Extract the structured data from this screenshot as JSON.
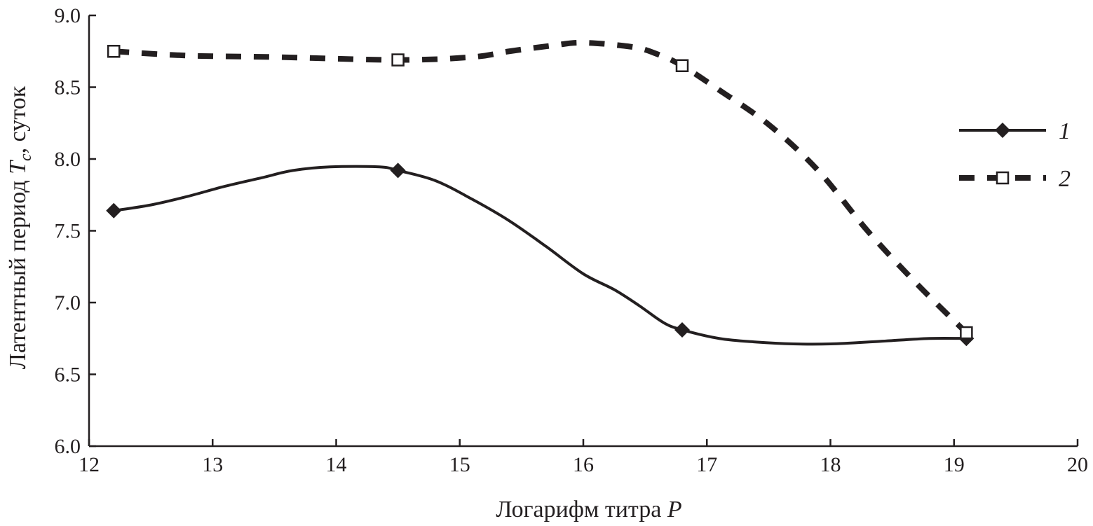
{
  "chart_data": {
    "type": "line",
    "title": "",
    "xlabel_prefix": "Логарифм титра ",
    "xlabel_var": "P",
    "ylabel_prefix": "Латентный период ",
    "ylabel_var": "T",
    "ylabel_sub": "c",
    "ylabel_suffix": ", суток",
    "xlim": [
      12,
      20
    ],
    "ylim": [
      6.0,
      9.0
    ],
    "xticks": [
      12,
      13,
      14,
      15,
      16,
      17,
      18,
      19,
      20
    ],
    "yticks": [
      6.0,
      6.5,
      7.0,
      7.5,
      8.0,
      8.5,
      9.0
    ],
    "legend_position": "right",
    "series": [
      {
        "name": "1",
        "style": "solid",
        "marker": "diamond",
        "color": "#231f20",
        "x": [
          12.2,
          14.5,
          16.8,
          19.1
        ],
        "y": [
          7.64,
          7.92,
          6.81,
          6.75
        ],
        "curve": [
          [
            12.2,
            7.64
          ],
          [
            12.5,
            7.68
          ],
          [
            12.8,
            7.74
          ],
          [
            13.1,
            7.81
          ],
          [
            13.4,
            7.87
          ],
          [
            13.65,
            7.92
          ],
          [
            13.95,
            7.945
          ],
          [
            14.35,
            7.945
          ],
          [
            14.5,
            7.92
          ],
          [
            14.8,
            7.85
          ],
          [
            15.1,
            7.72
          ],
          [
            15.4,
            7.57
          ],
          [
            15.7,
            7.39
          ],
          [
            16.0,
            7.2
          ],
          [
            16.25,
            7.09
          ],
          [
            16.45,
            6.98
          ],
          [
            16.65,
            6.86
          ],
          [
            16.8,
            6.81
          ],
          [
            17.1,
            6.75
          ],
          [
            17.4,
            6.725
          ],
          [
            17.7,
            6.712
          ],
          [
            18.0,
            6.712
          ],
          [
            18.4,
            6.73
          ],
          [
            18.8,
            6.75
          ],
          [
            19.1,
            6.75
          ]
        ]
      },
      {
        "name": "2",
        "style": "dashed",
        "marker": "square-open",
        "color": "#231f20",
        "x": [
          12.2,
          14.5,
          16.8,
          19.1
        ],
        "y": [
          8.75,
          8.69,
          8.65,
          6.79
        ],
        "curve": [
          [
            12.2,
            8.75
          ],
          [
            12.8,
            8.72
          ],
          [
            13.5,
            8.71
          ],
          [
            14.5,
            8.69
          ],
          [
            15.1,
            8.71
          ],
          [
            15.4,
            8.75
          ],
          [
            15.75,
            8.79
          ],
          [
            16.0,
            8.81
          ],
          [
            16.4,
            8.78
          ],
          [
            16.6,
            8.73
          ],
          [
            16.8,
            8.65
          ],
          [
            17.1,
            8.48
          ],
          [
            17.5,
            8.24
          ],
          [
            17.9,
            7.92
          ],
          [
            18.3,
            7.5
          ],
          [
            18.7,
            7.13
          ],
          [
            19.1,
            6.79
          ]
        ]
      }
    ]
  }
}
